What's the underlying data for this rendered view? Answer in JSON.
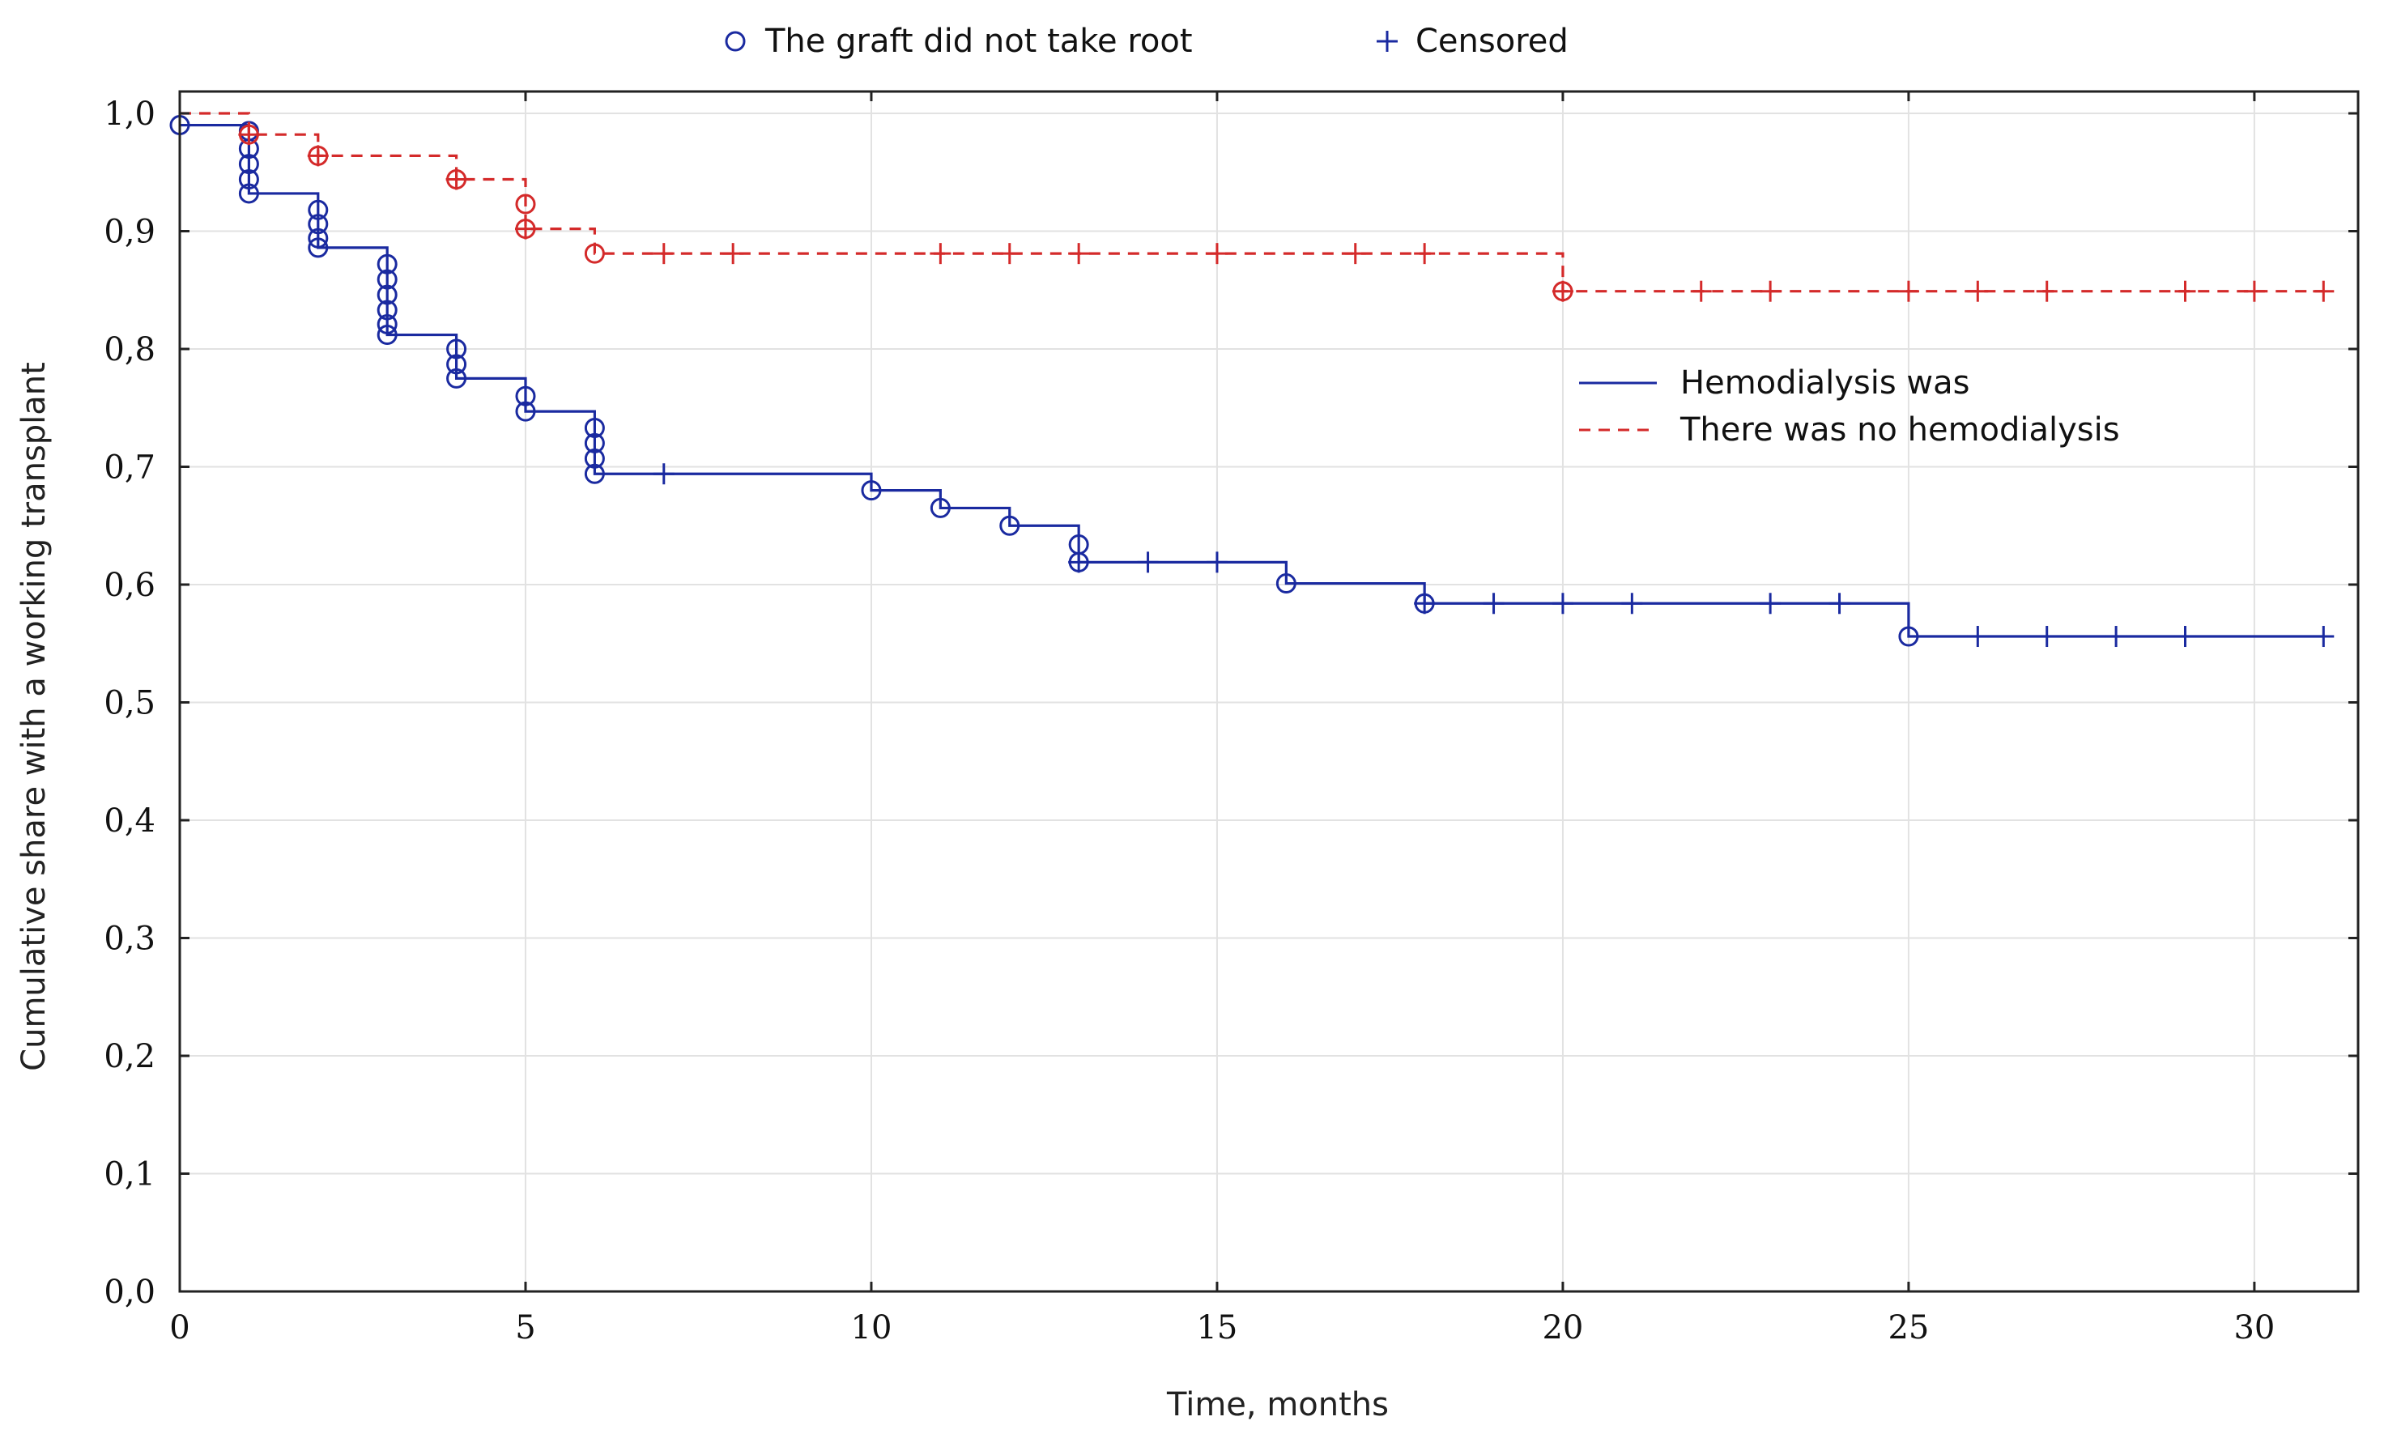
{
  "chart_data": {
    "type": "line",
    "subtype": "kaplan-meier",
    "title": "",
    "xlabel": "Time, months",
    "ylabel": "Cumulative share with a working transplant",
    "xlim": [
      0,
      31.5
    ],
    "ylim": [
      0,
      1.0
    ],
    "xticks": [
      0,
      5,
      10,
      15,
      20,
      25,
      30
    ],
    "yticks": [
      "0,0",
      "0,1",
      "0,2",
      "0,3",
      "0,4",
      "0,5",
      "0,6",
      "0,7",
      "0,8",
      "0,9",
      "1,0"
    ],
    "grid": true,
    "marker_legend": [
      {
        "symbol": "o",
        "label": "The graft did not take root"
      },
      {
        "symbol": "+",
        "label": "Censored"
      }
    ],
    "series": [
      {
        "name": "Hemodialysis was",
        "color": "#1a2aa0",
        "style": "solid",
        "steps": [
          [
            0,
            0.99
          ],
          [
            1,
            0.932
          ],
          [
            2,
            0.886
          ],
          [
            3,
            0.812
          ],
          [
            4,
            0.775
          ],
          [
            5,
            0.747
          ],
          [
            6,
            0.694
          ],
          [
            10,
            0.68
          ],
          [
            11,
            0.665
          ],
          [
            12,
            0.65
          ],
          [
            13,
            0.619
          ],
          [
            16,
            0.601
          ],
          [
            18,
            0.584
          ],
          [
            25,
            0.556
          ],
          [
            31,
            0.556
          ]
        ],
        "events": [
          [
            0,
            0.99
          ],
          [
            1,
            0.985
          ],
          [
            1,
            0.97
          ],
          [
            1,
            0.957
          ],
          [
            1,
            0.944
          ],
          [
            1,
            0.932
          ],
          [
            2,
            0.918
          ],
          [
            2,
            0.906
          ],
          [
            2,
            0.894
          ],
          [
            2,
            0.886
          ],
          [
            3,
            0.872
          ],
          [
            3,
            0.859
          ],
          [
            3,
            0.846
          ],
          [
            3,
            0.833
          ],
          [
            3,
            0.821
          ],
          [
            3,
            0.812
          ],
          [
            4,
            0.8
          ],
          [
            4,
            0.787
          ],
          [
            4,
            0.775
          ],
          [
            5,
            0.76
          ],
          [
            5,
            0.747
          ],
          [
            6,
            0.733
          ],
          [
            6,
            0.72
          ],
          [
            6,
            0.707
          ],
          [
            6,
            0.694
          ],
          [
            10,
            0.68
          ],
          [
            11,
            0.665
          ],
          [
            12,
            0.65
          ],
          [
            13,
            0.634
          ],
          [
            13,
            0.619
          ],
          [
            16,
            0.601
          ],
          [
            18,
            0.584
          ],
          [
            25,
            0.556
          ]
        ],
        "censored": [
          [
            7,
            0.694
          ],
          [
            13,
            0.619
          ],
          [
            14,
            0.619
          ],
          [
            15,
            0.619
          ],
          [
            18,
            0.584
          ],
          [
            19,
            0.584
          ],
          [
            20,
            0.584
          ],
          [
            21,
            0.584
          ],
          [
            23,
            0.584
          ],
          [
            24,
            0.584
          ],
          [
            26,
            0.556
          ],
          [
            27,
            0.556
          ],
          [
            28,
            0.556
          ],
          [
            29,
            0.556
          ],
          [
            31,
            0.556
          ]
        ]
      },
      {
        "name": "There was no hemodialysis",
        "color": "#d42a2a",
        "style": "dashed",
        "steps": [
          [
            0,
            1.0
          ],
          [
            1,
            0.982
          ],
          [
            2,
            0.964
          ],
          [
            4,
            0.944
          ],
          [
            5,
            0.902
          ],
          [
            6,
            0.881
          ],
          [
            20,
            0.849
          ],
          [
            31,
            0.849
          ]
        ],
        "events": [
          [
            1,
            0.982
          ],
          [
            2,
            0.964
          ],
          [
            4,
            0.944
          ],
          [
            5,
            0.923
          ],
          [
            5,
            0.902
          ],
          [
            6,
            0.881
          ],
          [
            20,
            0.849
          ]
        ],
        "censored": [
          [
            1,
            0.982
          ],
          [
            2,
            0.964
          ],
          [
            4,
            0.944
          ],
          [
            5,
            0.902
          ],
          [
            7,
            0.881
          ],
          [
            8,
            0.881
          ],
          [
            11,
            0.881
          ],
          [
            12,
            0.881
          ],
          [
            13,
            0.881
          ],
          [
            15,
            0.881
          ],
          [
            17,
            0.881
          ],
          [
            18,
            0.881
          ],
          [
            20,
            0.849
          ],
          [
            22,
            0.849
          ],
          [
            23,
            0.849
          ],
          [
            25,
            0.849
          ],
          [
            26,
            0.849
          ],
          [
            27,
            0.849
          ],
          [
            29,
            0.849
          ],
          [
            30,
            0.849
          ],
          [
            31,
            0.849
          ]
        ]
      }
    ]
  }
}
